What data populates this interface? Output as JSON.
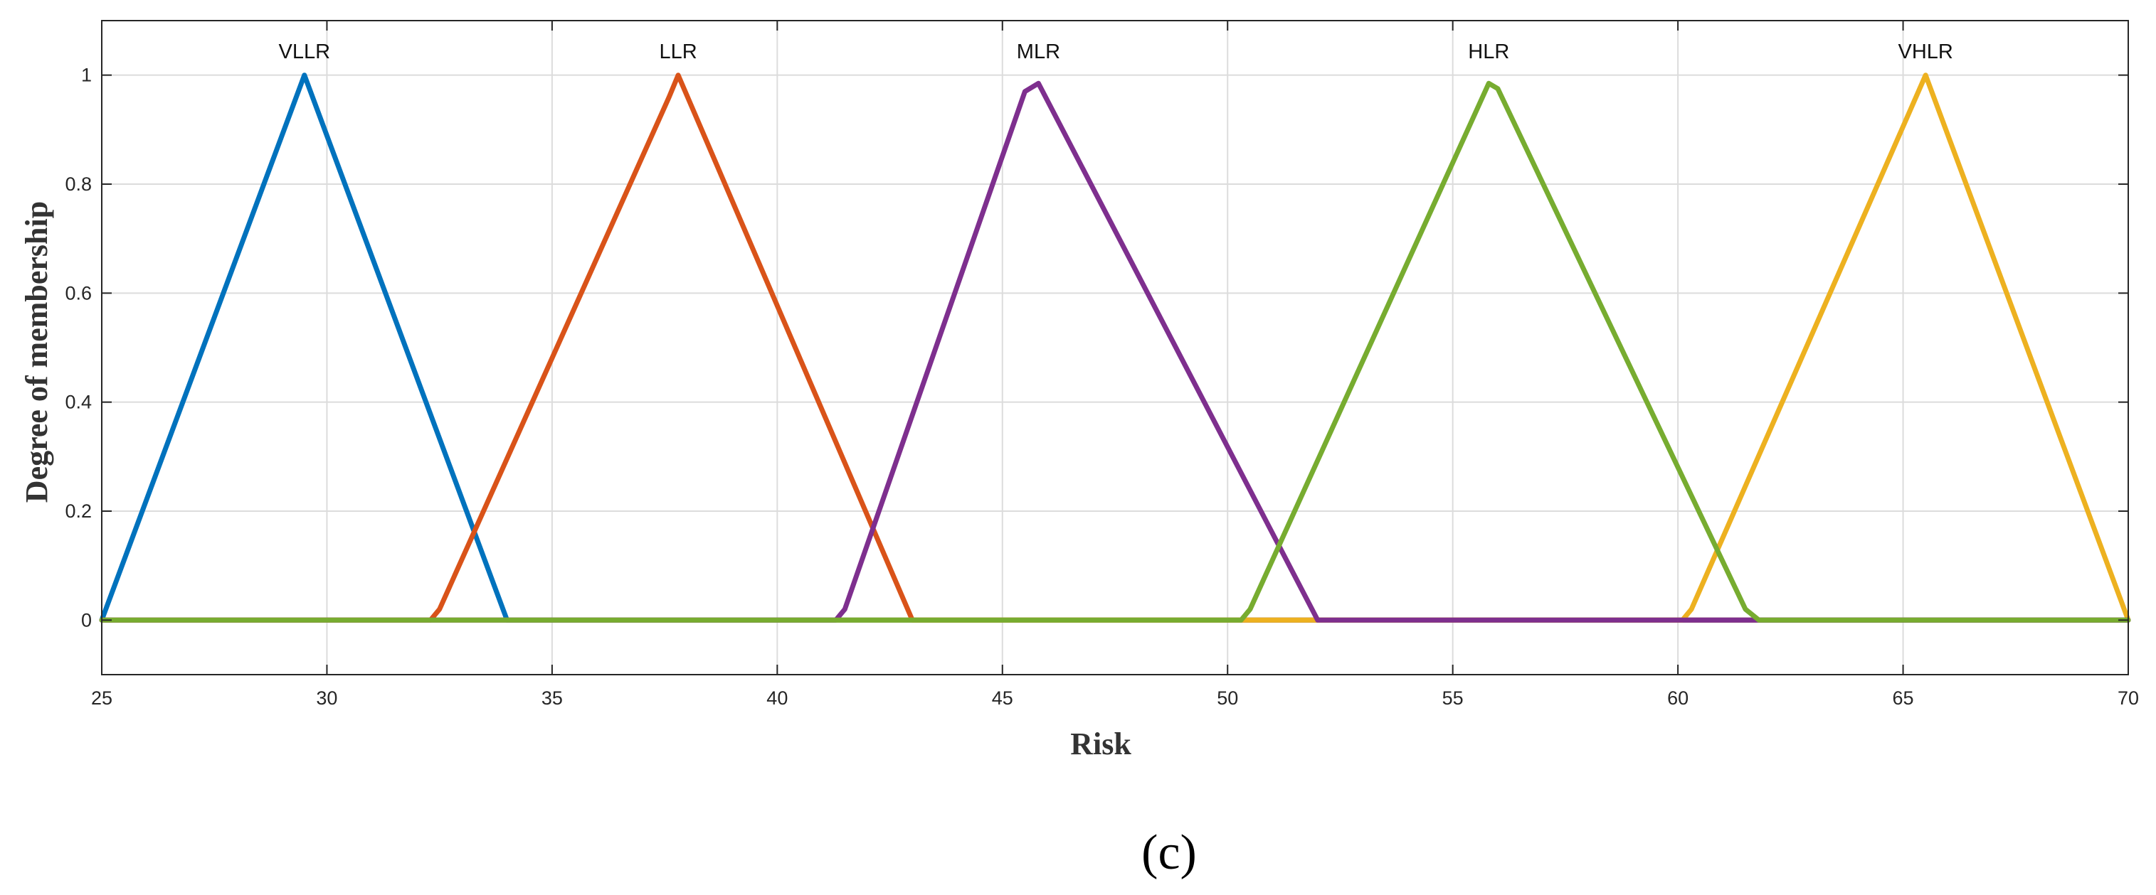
{
  "chart_data": {
    "type": "line",
    "title": "",
    "xlabel": "Risk",
    "ylabel": "Degree of membership",
    "xlim": [
      25,
      70
    ],
    "ylim": [
      -0.1,
      1.1
    ],
    "x_ticks": [
      25,
      30,
      35,
      40,
      45,
      50,
      55,
      60,
      65,
      70
    ],
    "y_ticks": [
      0,
      0.2,
      0.4,
      0.6,
      0.8,
      1
    ],
    "grid": true,
    "legend": "none",
    "series": [
      {
        "name": "VLLR",
        "color": "#0072BD",
        "x": [
          25,
          29.5,
          34,
          70
        ],
        "y": [
          0,
          1,
          0,
          0
        ]
      },
      {
        "name": "LLR",
        "color": "#D95319",
        "x": [
          25,
          32.3,
          32.5,
          37.6,
          37.8,
          43,
          70
        ],
        "y": [
          0,
          0,
          0.02,
          0.96,
          1,
          0,
          0
        ]
      },
      {
        "name": "VHLR",
        "color": "#EDB120",
        "x": [
          25,
          60.1,
          60.3,
          65.5,
          70
        ],
        "y": [
          0,
          0,
          0.02,
          1,
          0
        ],
        "z": 1
      },
      {
        "name": "MLR",
        "color": "#7E2F8E",
        "x": [
          25,
          41.3,
          41.5,
          45.5,
          45.8,
          52,
          70
        ],
        "y": [
          0,
          0,
          0.02,
          0.97,
          0.985,
          0,
          0
        ],
        "z": 2
      },
      {
        "name": "HLR",
        "color": "#77AC30",
        "x": [
          25,
          50.3,
          50.5,
          55.8,
          56,
          61.5,
          61.8,
          70
        ],
        "y": [
          0,
          0,
          0.02,
          0.985,
          0.975,
          0.02,
          0,
          0
        ],
        "z": 3
      }
    ],
    "peak_labels": [
      {
        "text": "VLLR",
        "x": 29.5
      },
      {
        "text": "LLR",
        "x": 37.8
      },
      {
        "text": "MLR",
        "x": 45.8
      },
      {
        "text": "HLR",
        "x": 55.8
      },
      {
        "text": "VHLR",
        "x": 65.5
      }
    ]
  },
  "caption": "(c)"
}
